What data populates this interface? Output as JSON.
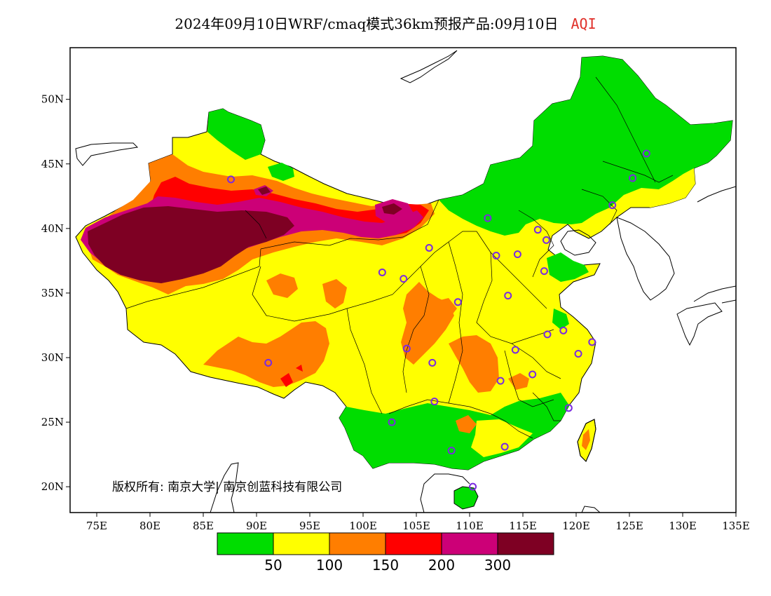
{
  "title": {
    "text": "2024年09月10日WRF/cmaq模式36km预报产品:09月10日",
    "variable": "AQI",
    "variable_color": "#e0302a"
  },
  "copyright": "版权所有: 南京大学| 南京创蓝科技有限公司",
  "axes": {
    "lon_range": [
      72.5,
      135
    ],
    "lat_range": [
      18,
      54
    ],
    "x_ticks": [
      {
        "lon": 75,
        "label": "75E"
      },
      {
        "lon": 80,
        "label": "80E"
      },
      {
        "lon": 85,
        "label": "85E"
      },
      {
        "lon": 90,
        "label": "90E"
      },
      {
        "lon": 95,
        "label": "95E"
      },
      {
        "lon": 100,
        "label": "100E"
      },
      {
        "lon": 105,
        "label": "105E"
      },
      {
        "lon": 110,
        "label": "110E"
      },
      {
        "lon": 115,
        "label": "115E"
      },
      {
        "lon": 120,
        "label": "120E"
      },
      {
        "lon": 125,
        "label": "125E"
      },
      {
        "lon": 130,
        "label": "130E"
      },
      {
        "lon": 135,
        "label": "135E"
      }
    ],
    "y_ticks": [
      {
        "lat": 20,
        "label": "20N"
      },
      {
        "lat": 25,
        "label": "25N"
      },
      {
        "lat": 30,
        "label": "30N"
      },
      {
        "lat": 35,
        "label": "35N"
      },
      {
        "lat": 40,
        "label": "40N"
      },
      {
        "lat": 45,
        "label": "45N"
      },
      {
        "lat": 50,
        "label": "50N"
      }
    ]
  },
  "legend": {
    "colors": [
      {
        "name": "good",
        "hex": "#00dd00"
      },
      {
        "name": "moderate",
        "hex": "#ffff00"
      },
      {
        "name": "sensitive",
        "hex": "#ff7e00"
      },
      {
        "name": "unhealthy",
        "hex": "#ff0000"
      },
      {
        "name": "very-unhealthy",
        "hex": "#cc0077"
      },
      {
        "name": "hazardous",
        "hex": "#7e0023"
      }
    ],
    "breaks": [
      "50",
      "100",
      "150",
      "200",
      "300"
    ]
  },
  "cities": [
    {
      "lon": 87.6,
      "lat": 43.8
    },
    {
      "lon": 91.1,
      "lat": 29.6
    },
    {
      "lon": 101.8,
      "lat": 36.6
    },
    {
      "lon": 103.8,
      "lat": 36.1
    },
    {
      "lon": 106.2,
      "lat": 38.5
    },
    {
      "lon": 104.1,
      "lat": 30.7
    },
    {
      "lon": 106.5,
      "lat": 29.6
    },
    {
      "lon": 106.7,
      "lat": 26.6
    },
    {
      "lon": 102.7,
      "lat": 25.0
    },
    {
      "lon": 108.9,
      "lat": 34.3
    },
    {
      "lon": 111.7,
      "lat": 40.8
    },
    {
      "lon": 112.5,
      "lat": 37.9
    },
    {
      "lon": 114.5,
      "lat": 38.0
    },
    {
      "lon": 116.4,
      "lat": 39.9
    },
    {
      "lon": 117.2,
      "lat": 39.1
    },
    {
      "lon": 117.0,
      "lat": 36.7
    },
    {
      "lon": 113.6,
      "lat": 34.8
    },
    {
      "lon": 114.3,
      "lat": 30.6
    },
    {
      "lon": 112.9,
      "lat": 28.2
    },
    {
      "lon": 115.9,
      "lat": 28.7
    },
    {
      "lon": 117.3,
      "lat": 31.8
    },
    {
      "lon": 118.8,
      "lat": 32.1
    },
    {
      "lon": 120.2,
      "lat": 30.3
    },
    {
      "lon": 121.5,
      "lat": 31.2
    },
    {
      "lon": 119.3,
      "lat": 26.1
    },
    {
      "lon": 113.3,
      "lat": 23.1
    },
    {
      "lon": 108.3,
      "lat": 22.8
    },
    {
      "lon": 110.3,
      "lat": 20.0
    },
    {
      "lon": 123.4,
      "lat": 41.8
    },
    {
      "lon": 125.3,
      "lat": 43.9
    },
    {
      "lon": 126.6,
      "lat": 45.8
    }
  ]
}
